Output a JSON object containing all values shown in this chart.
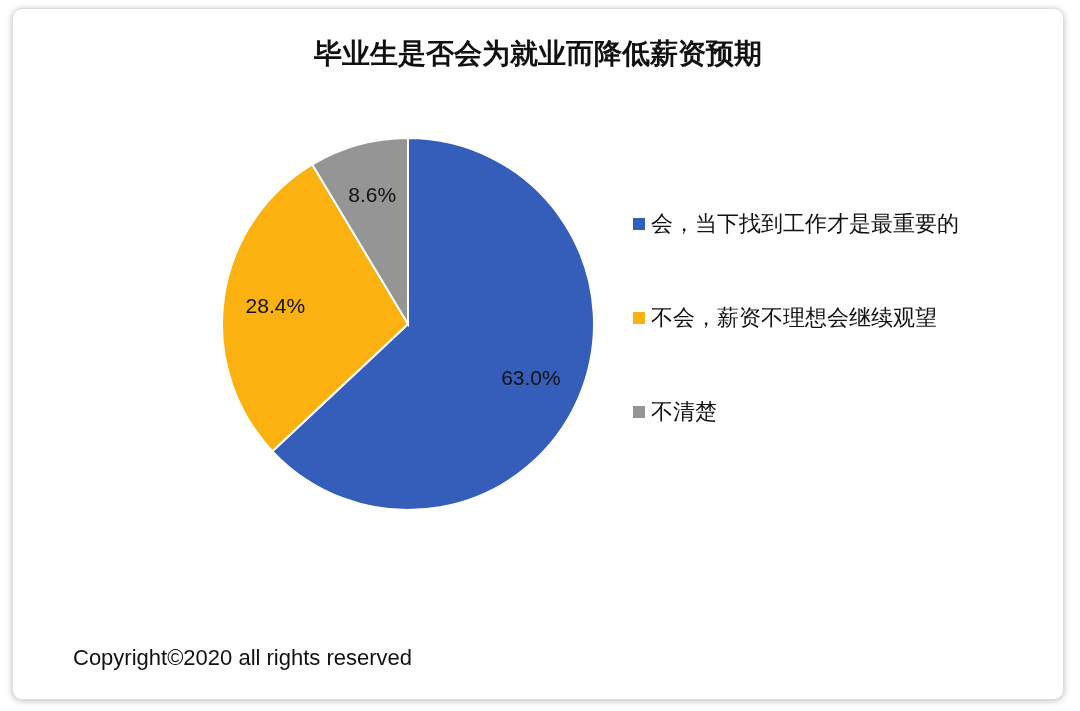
{
  "chart_data": {
    "type": "pie",
    "title": "毕业生是否会为就业而降低薪资预期",
    "categories": [
      "会，当下找到工作才是最重要的",
      "不会，薪资不理想会继续观望",
      "不清楚"
    ],
    "values": [
      63.0,
      28.4,
      8.6
    ],
    "colors": [
      "#355dba",
      "#fbb210",
      "#959595"
    ],
    "value_labels": [
      "63.0%",
      "28.4%",
      "8.6%"
    ],
    "legend": "right",
    "annotations": [
      "Copyright©2020 all rights reserved"
    ]
  }
}
